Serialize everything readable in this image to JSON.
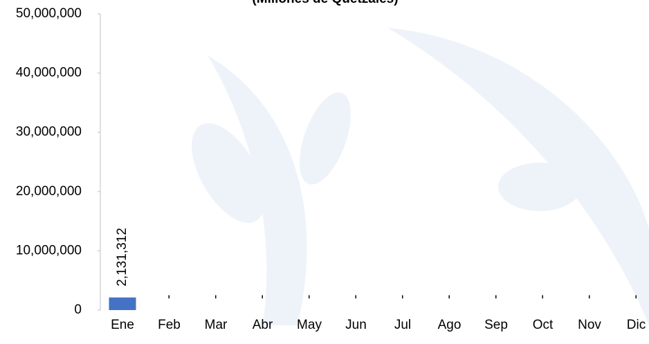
{
  "chart_data": {
    "type": "bar",
    "subtitle": "(Millones de Quetzales)",
    "categories": [
      "Ene",
      "Feb",
      "Mar",
      "Abr",
      "May",
      "Jun",
      "Jul",
      "Ago",
      "Sep",
      "Oct",
      "Nov",
      "Dic"
    ],
    "values": [
      2131312,
      0,
      0,
      0,
      0,
      0,
      0,
      0,
      0,
      0,
      0,
      0
    ],
    "value_labels": [
      "2,131,312",
      "-",
      "-",
      "-",
      "-",
      "-",
      "-",
      "-",
      "-",
      "-",
      "-",
      "-"
    ],
    "color": "#4472c4",
    "ylim": [
      0,
      50000000
    ],
    "yticks": [
      0,
      {
        "value": 10000000,
        "label": "10,000,000"
      },
      {
        "value": 20000000,
        "label": "20,000,000"
      },
      {
        "value": 30000000,
        "label": "30,000,000"
      },
      {
        "value": 40000000,
        "label": "40,000,000"
      },
      {
        "value": 50000000,
        "label": "50,000,000"
      }
    ],
    "grid": false
  }
}
